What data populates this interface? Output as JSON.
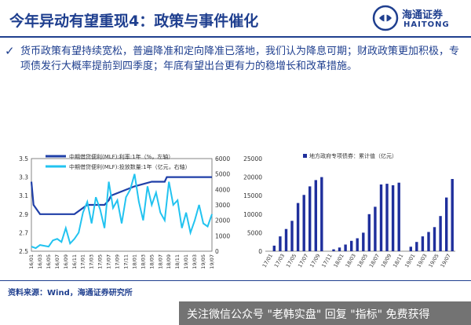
{
  "header": {
    "title": "今年异动有望重现4：政策与事件催化",
    "logo_cn": "海通证券",
    "logo_en": "HAITONG"
  },
  "bullet": {
    "text": "货币政策有望持续宽松，普遍降准和定向降准已落地，我们认为降息可期；财政政策更加积极，专项债发行大概率提前到四季度；年底有望出台更有力的稳增长和改革措施。"
  },
  "chart_data": [
    {
      "type": "line",
      "legend": [
        "中期借贷便利(MLF):利率:1年（%，左轴）",
        "中期借贷便利(MLF):投放数量:1年（亿元，右轴）"
      ],
      "x_ticks": [
        "16/01",
        "16/03",
        "16/05",
        "16/07",
        "16/09",
        "16/11",
        "17/01",
        "17/03",
        "17/05",
        "17/07",
        "17/09",
        "17/11",
        "18/01",
        "18/03",
        "18/05",
        "18/07",
        "18/09",
        "18/11",
        "19/01",
        "19/03",
        "19/05",
        "19/07"
      ],
      "ylim_left": [
        2.5,
        3.5
      ],
      "yticks_left": [
        "3.5",
        "3.3",
        "3.1",
        "2.9",
        "2.7",
        "2.5"
      ],
      "ylim_right": [
        0,
        6000
      ],
      "yticks_right": [
        "6000",
        "5000",
        "4000",
        "3000",
        "2000",
        "1000",
        "0"
      ],
      "series": [
        {
          "name": "中期借贷便利(MLF):利率:1年（%，左轴）",
          "axis": "left",
          "color": "#1f3fa8",
          "x": [
            0,
            0.5,
            2,
            6,
            10,
            13,
            13.5,
            17,
            18,
            18.5,
            24,
            28,
            31,
            31.5,
            42
          ],
          "y": [
            3.25,
            3.0,
            2.9,
            2.9,
            2.9,
            3.0,
            3.0,
            3.0,
            3.05,
            3.1,
            3.2,
            3.25,
            3.25,
            3.3,
            3.3
          ]
        },
        {
          "name": "中期借贷便利(MLF):投放数量:1年（亿元，右轴）",
          "axis": "right",
          "color": "#22c3f0",
          "x": [
            0,
            1,
            2,
            3,
            4,
            5,
            6,
            7,
            8,
            9,
            10,
            11,
            12,
            13,
            14,
            15,
            16,
            17,
            18,
            19,
            20,
            21,
            22,
            23,
            24,
            25,
            26,
            27,
            28,
            29,
            30,
            31,
            32,
            33,
            34,
            35,
            36,
            37,
            38,
            39,
            40,
            41,
            42
          ],
          "y": [
            300,
            200,
            400,
            350,
            300,
            700,
            800,
            600,
            1500,
            500,
            800,
            1200,
            2500,
            3200,
            1800,
            3500,
            2700,
            1500,
            4500,
            2800,
            3300,
            1800,
            3500,
            4000,
            5000,
            3200,
            2000,
            4200,
            3000,
            3800,
            2500,
            2000,
            4500,
            3000,
            3300,
            1500,
            2500,
            1200,
            2000,
            3000,
            1800,
            1600,
            2400
          ]
        }
      ]
    },
    {
      "type": "bar",
      "legend": "地方政府专项债券：累计值（亿元）",
      "color": "#1f2f9c",
      "x_ticks": [
        "17/01",
        "17/03",
        "17/05",
        "17/07",
        "17/09",
        "17/11",
        "18/01",
        "18/03",
        "18/05",
        "18/07",
        "18/09",
        "18/11",
        "19/01",
        "19/03",
        "19/05",
        "19/07"
      ],
      "ylim": [
        0,
        25000
      ],
      "yticks": [
        "25000",
        "20000",
        "15000",
        "10000",
        "5000",
        "0"
      ],
      "values": [
        0,
        1500,
        4000,
        6000,
        8200,
        13000,
        15200,
        17500,
        19200,
        20000,
        0,
        500,
        1000,
        1800,
        2800,
        3500,
        5000,
        10000,
        12000,
        18000,
        18200,
        17800,
        18500,
        0,
        1200,
        2500,
        4000,
        5200,
        6500,
        9500,
        14500,
        19500
      ]
    }
  ],
  "footer": {
    "source": "资料来源：Wind，海通证券研究所",
    "watermark": "关注微信公众号 \"老韩实盘\" 回复 \"指标\" 免费获得"
  }
}
